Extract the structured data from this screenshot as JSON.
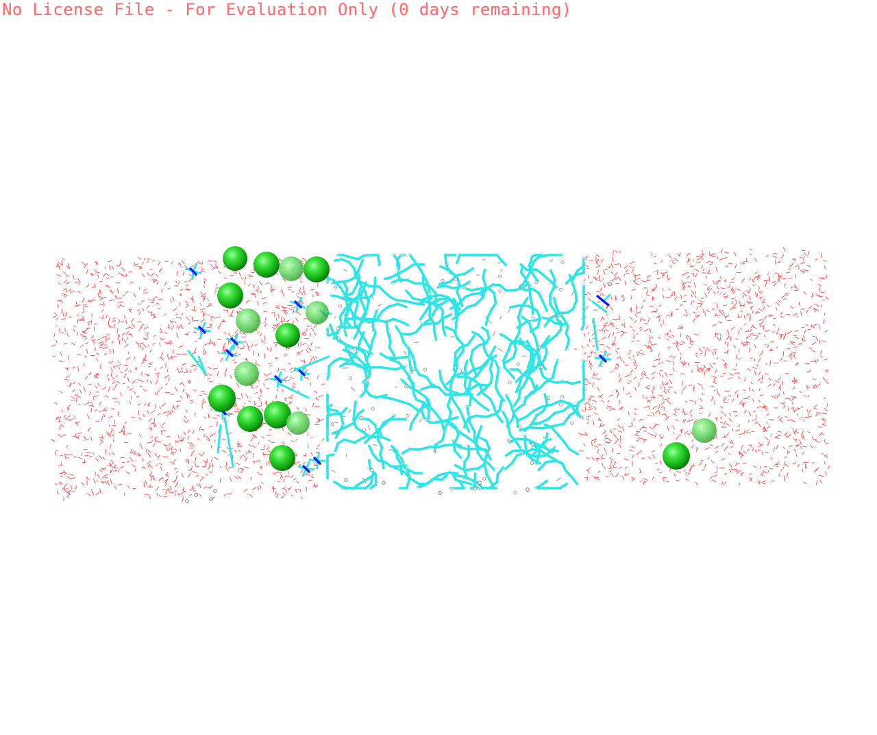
{
  "banner": {
    "text": "No License File - For Evaluation Only (0 days remaining)"
  },
  "colors": {
    "background": "#ffffff",
    "banner_text": "#ff6f6f",
    "water_oxygen": "#ff4d4d",
    "water_hydrogen": "#d9d9d9",
    "carbon": "#2ee6e6",
    "nitrogen": "#1a1aff",
    "hydrogen": "#e0e0e0",
    "chloride": "#22cc22"
  },
  "scene": {
    "representation": "molecular dynamics box: water slabs, peptide/lipid core in sticks, chloride ions as spheres",
    "regions": [
      "water-left",
      "solute-core",
      "water-right"
    ],
    "ion_count": 16
  }
}
